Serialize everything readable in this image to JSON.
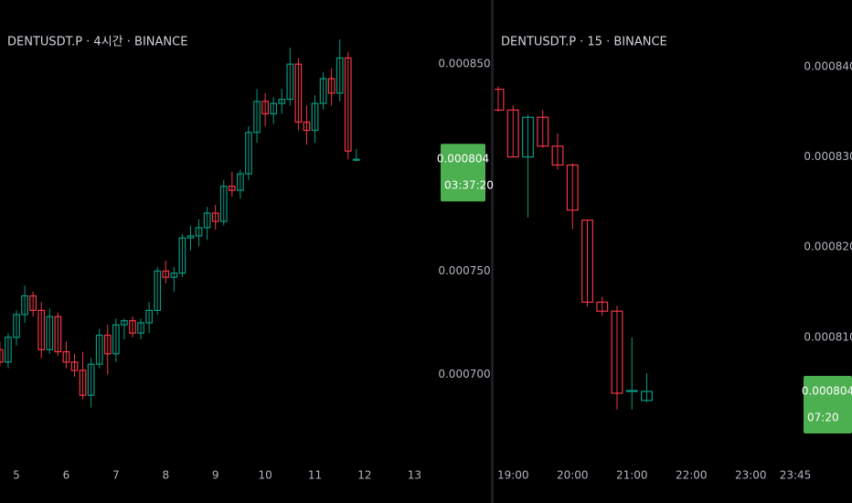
{
  "chart_data": [
    {
      "type": "candlestick",
      "title": "DENTUSDT.P · 4시간 · BINANCE",
      "categories": [
        null,
        null,
        "5",
        null,
        null,
        null,
        null,
        null,
        "6",
        null,
        null,
        null,
        null,
        null,
        "7",
        null,
        null,
        null,
        null,
        null,
        "8",
        null,
        null,
        null,
        null,
        null,
        "9",
        null,
        null,
        null,
        null,
        null,
        "10",
        null,
        null,
        null,
        null,
        null,
        "11",
        null,
        null,
        null,
        null,
        null,
        "12",
        null,
        null,
        null,
        null,
        null,
        "13"
      ],
      "open": [
        0.000712,
        0.000706,
        0.000718,
        0.000729,
        0.000738,
        0.000731,
        0.000712,
        0.000728,
        0.000711,
        0.000706,
        0.000702,
        0.00069,
        0.000705,
        0.000719,
        0.00071,
        0.000724,
        0.000726,
        0.00072,
        0.000725,
        0.000731,
        0.00075,
        0.000747,
        0.000749,
        0.000766,
        0.000767,
        0.000771,
        0.000778,
        0.000774,
        0.000791,
        0.000789,
        0.000797,
        0.000817,
        0.000832,
        0.000826,
        0.000831,
        0.000833,
        0.00085,
        0.000822,
        0.000818,
        0.000831,
        0.000843,
        0.000836,
        0.000853,
        0.000804,
        null,
        null,
        null,
        null,
        null,
        null,
        null
      ],
      "high": [
        0.000716,
        0.00072,
        0.000731,
        0.000743,
        0.00074,
        0.000735,
        0.000732,
        0.00073,
        0.000716,
        0.00071,
        0.000711,
        0.000708,
        0.000722,
        0.000724,
        0.000727,
        0.000727,
        0.000728,
        0.000727,
        0.000735,
        0.000752,
        0.000755,
        0.000752,
        0.000768,
        0.000772,
        0.000775,
        0.000781,
        0.000782,
        0.000794,
        0.000798,
        0.000799,
        0.00082,
        0.000838,
        0.000836,
        0.000834,
        0.000838,
        0.000858,
        0.000853,
        0.00083,
        0.000835,
        0.000846,
        0.000848,
        0.000862,
        0.000856,
        0.000809,
        null,
        null,
        null,
        null,
        null,
        null,
        null
      ],
      "low": [
        0.000704,
        0.000703,
        0.000714,
        0.000725,
        0.000728,
        0.000708,
        0.00071,
        0.000709,
        0.000703,
        0.000699,
        0.000688,
        0.000684,
        0.000703,
        0.0007,
        0.000706,
        0.000717,
        0.000718,
        0.000717,
        0.00072,
        0.000729,
        0.000744,
        0.00074,
        0.000747,
        0.00076,
        0.000762,
        0.000765,
        0.00077,
        0.000772,
        0.000786,
        0.000785,
        0.000794,
        0.000812,
        0.00082,
        0.000821,
        0.000826,
        0.00083,
        0.000818,
        0.000811,
        0.000812,
        0.000828,
        0.00083,
        0.000832,
        0.000804,
        0.000803,
        null,
        null,
        null,
        null,
        null,
        null,
        null
      ],
      "close": [
        0.000706,
        0.000718,
        0.000729,
        0.000738,
        0.000731,
        0.000712,
        0.000728,
        0.000711,
        0.000706,
        0.000702,
        0.00069,
        0.000705,
        0.000719,
        0.00071,
        0.000724,
        0.000726,
        0.00072,
        0.000725,
        0.000731,
        0.00075,
        0.000747,
        0.000749,
        0.000766,
        0.000767,
        0.000771,
        0.000778,
        0.000774,
        0.000791,
        0.000789,
        0.000797,
        0.000817,
        0.000832,
        0.000826,
        0.000831,
        0.000833,
        0.00085,
        0.000822,
        0.000818,
        0.000831,
        0.000843,
        0.000836,
        0.000853,
        0.000808,
        0.000804,
        null,
        null,
        null,
        null,
        null,
        null,
        null
      ],
      "up_color": "#089981",
      "down_color": "#f23645",
      "ylim": [
        0.00066,
        0.000881
      ],
      "yticks": [
        {
          "value": 0.00085,
          "label": "0.000850"
        },
        {
          "value": 0.00075,
          "label": "0.000750"
        },
        {
          "value": 0.0007,
          "label": "0.000700"
        }
      ],
      "last_price": 0.000804,
      "countdown": "03:37:20",
      "price_label_color": "#4caf50"
    },
    {
      "type": "candlestick",
      "title": "DENTUSDT.P · 15 · BINANCE",
      "categories": [
        null,
        "19:00",
        null,
        null,
        null,
        "20:00",
        null,
        null,
        null,
        "21:00",
        null,
        null,
        null,
        "22:00",
        null,
        null,
        null,
        "23:00",
        null,
        null,
        "23:45"
      ],
      "open": [
        0.0008375,
        0.0008352,
        0.00083,
        0.0008344,
        0.0008312,
        0.0008291,
        0.000823,
        0.0008139,
        0.0008129,
        0.000804,
        0.000803,
        null,
        null,
        null,
        null,
        null,
        null,
        null,
        null,
        null,
        null
      ],
      "high": [
        0.0008378,
        0.0008357,
        0.0008347,
        0.0008352,
        0.0008326,
        0.0008293,
        0.000823,
        0.0008145,
        0.0008135,
        0.00081,
        0.000806,
        null,
        null,
        null,
        null,
        null,
        null,
        null,
        null,
        null,
        null
      ],
      "low": [
        0.000835,
        0.00083,
        0.0008233,
        0.000831,
        0.0008286,
        0.000822,
        0.0008134,
        0.0008124,
        0.000802,
        0.000802,
        0.0008028,
        null,
        null,
        null,
        null,
        null,
        null,
        null,
        null,
        null,
        null
      ],
      "close": [
        0.0008352,
        0.00083,
        0.0008344,
        0.0008312,
        0.0008291,
        0.0008241,
        0.0008139,
        0.0008129,
        0.0008038,
        0.0008041,
        0.000804,
        null,
        null,
        null,
        null,
        null,
        null,
        null,
        null,
        null,
        null
      ],
      "up_color": "#089981",
      "down_color": "#f23645",
      "ylim": [
        0.0007967,
        0.0008474
      ],
      "yticks": [
        {
          "value": 0.00084,
          "label": "0.000840"
        },
        {
          "value": 0.00083,
          "label": "0.000830"
        },
        {
          "value": 0.00082,
          "label": "0.000820"
        },
        {
          "value": 0.00081,
          "label": "0.000810"
        }
      ],
      "last_price": 0.000804,
      "countdown": "07:20",
      "price_label_color": "#4caf50"
    }
  ]
}
